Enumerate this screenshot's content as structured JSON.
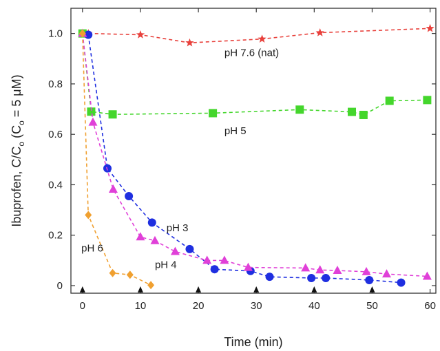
{
  "chart_data": {
    "type": "line",
    "title": "",
    "xlabel": "Time (min)",
    "ylabel_main": "Ibuprofen, C/C",
    "ylabel_sub": "o",
    "ylabel_paren_open": " (C",
    "ylabel_sub2": "o",
    "ylabel_tail": " = 5 μM)",
    "xlim": [
      -2,
      61
    ],
    "ylim": [
      -0.03,
      1.1
    ],
    "xticks": [
      0,
      10,
      20,
      30,
      40,
      50,
      60
    ],
    "yticks": [
      0,
      0.2,
      0.4,
      0.6,
      0.8,
      1.0
    ],
    "ytick_labels": [
      "0",
      "0.2",
      "0.4",
      "0.6",
      "0.8",
      "1.0"
    ],
    "arrow_ticks_x": [
      0,
      10,
      20,
      30,
      40,
      50
    ],
    "grid": false,
    "series": [
      {
        "label": "pH 7.6 (nat)",
        "color": "#e8413c",
        "marker": "star",
        "x": [
          0,
          1,
          10,
          18.5,
          31,
          41,
          60
        ],
        "y": [
          1.0,
          1.0,
          0.995,
          0.963,
          0.978,
          1.003,
          1.02
        ]
      },
      {
        "label": "pH 5",
        "color": "#44d62c",
        "marker": "square",
        "x": [
          0,
          1.5,
          5.2,
          22.5,
          37.5,
          46.5,
          48.5,
          53,
          59.5
        ],
        "y": [
          1.0,
          0.69,
          0.679,
          0.684,
          0.698,
          0.689,
          0.677,
          0.733,
          0.736
        ]
      },
      {
        "label": "pH 3",
        "color": "#1f2fe0",
        "marker": "circle",
        "x": [
          1,
          4.3,
          8,
          12,
          18.5,
          22.8,
          29,
          32.3,
          39.5,
          42,
          49.5,
          55
        ],
        "y": [
          0.995,
          0.465,
          0.355,
          0.25,
          0.145,
          0.065,
          0.058,
          0.035,
          0.03,
          0.03,
          0.022,
          0.012
        ]
      },
      {
        "label": "pH 4",
        "color": "#e040d8",
        "marker": "triangle",
        "x": [
          0,
          1.8,
          5.3,
          10,
          12.5,
          16,
          21.5,
          24.5,
          28.6,
          38.5,
          41,
          44,
          49,
          52.5,
          59.5
        ],
        "y": [
          1.0,
          0.648,
          0.382,
          0.193,
          0.178,
          0.135,
          0.1,
          0.1,
          0.072,
          0.07,
          0.062,
          0.06,
          0.055,
          0.046,
          0.037
        ]
      },
      {
        "label": "pH 6",
        "color": "#f0a030",
        "marker": "diamond",
        "x": [
          0,
          1,
          5.2,
          8.2,
          11.8
        ],
        "y": [
          1.0,
          0.28,
          0.05,
          0.043,
          0.002
        ]
      }
    ],
    "annotations": [
      {
        "text": "pH  7.6  (nat)",
        "x": 24.5,
        "y": 0.91
      },
      {
        "text": "pH  5",
        "x": 24.5,
        "y": 0.6
      },
      {
        "text": "pH  3",
        "x": 14.5,
        "y": 0.215
      },
      {
        "text": "pH  4",
        "x": 12.5,
        "y": 0.07
      },
      {
        "text": "pH  6",
        "x": -0.2,
        "y": 0.135
      }
    ]
  }
}
